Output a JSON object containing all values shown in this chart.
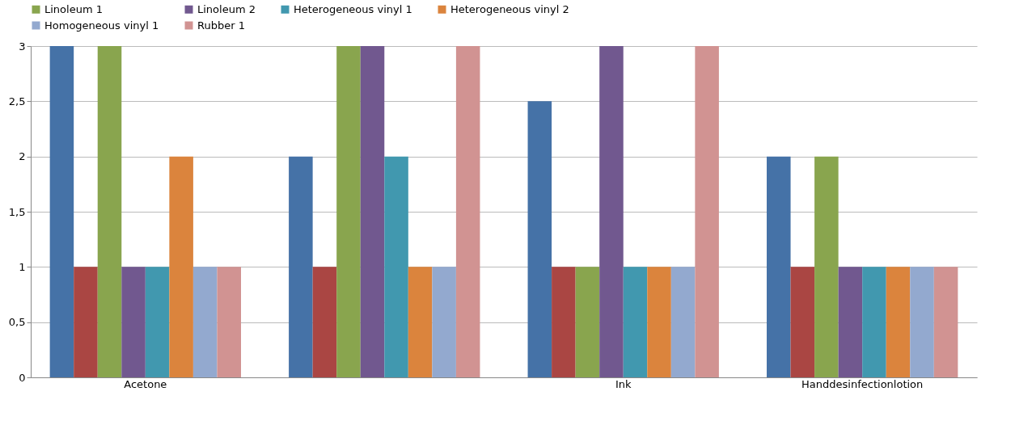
{
  "chart_data": {
    "type": "bar",
    "categories": [
      "Acetone",
      null,
      "Ink",
      "Handdesinfectionlotion"
    ],
    "series": [
      {
        "color": "#4572a7",
        "values": [
          3,
          2,
          2.5,
          2
        ]
      },
      {
        "color": "#aa4643",
        "values": [
          1,
          1,
          1,
          1
        ]
      },
      {
        "name": "Linoleum 1",
        "color": "#89a54e",
        "values": [
          3,
          3,
          1,
          2
        ]
      },
      {
        "name": "Linoleum 2",
        "color": "#71588f",
        "values": [
          1,
          3,
          3,
          1
        ]
      },
      {
        "name": "Heterogeneous vinyl 1",
        "color": "#4198af",
        "values": [
          1,
          2,
          1,
          1
        ]
      },
      {
        "name": "Heterogeneous vinyl 2",
        "color": "#db843d",
        "values": [
          2,
          1,
          1,
          1
        ]
      },
      {
        "name": "Homogeneous vinyl 1",
        "color": "#93a9cf",
        "values": [
          1,
          1,
          1,
          1
        ]
      },
      {
        "name": "Rubber 1",
        "color": "#d19392",
        "values": [
          1,
          3,
          3,
          1
        ]
      }
    ],
    "ylim": [
      0,
      3
    ],
    "yticks": [
      0,
      {
        "value": 0.5,
        "label": "0,5"
      },
      1,
      {
        "value": 1.5,
        "label": "1,5"
      },
      2,
      {
        "value": 2.5,
        "label": "2,5"
      },
      3
    ],
    "grid": "y",
    "legend": "top"
  }
}
